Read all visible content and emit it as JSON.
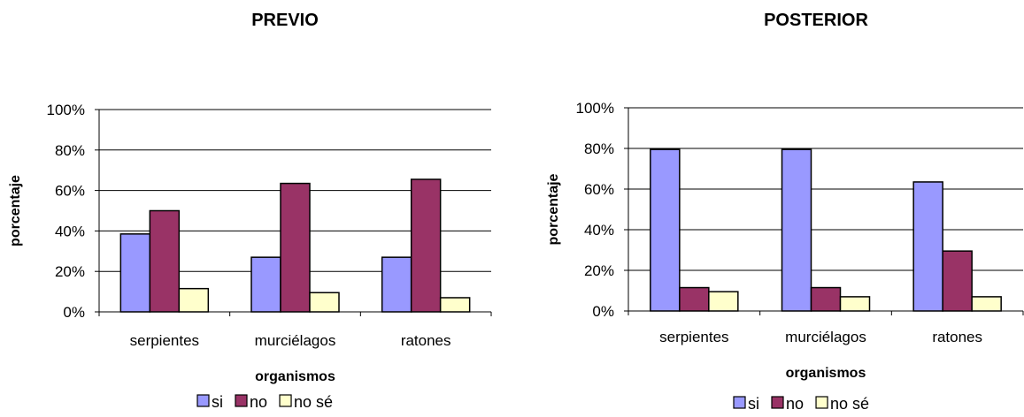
{
  "chart_data": [
    {
      "type": "bar",
      "title": "PREVIO",
      "xlabel": "organismos",
      "ylabel": "porcentaje",
      "ylim": [
        0,
        100
      ],
      "yticks": [
        "0%",
        "20%",
        "40%",
        "60%",
        "80%",
        "100%"
      ],
      "grid": true,
      "legend_position": "bottom",
      "categories": [
        "serpientes",
        "murciélagos",
        "ratones"
      ],
      "series": [
        {
          "name": "si",
          "color": "#9999ff",
          "values": [
            38.5,
            27,
            27
          ]
        },
        {
          "name": "no",
          "color": "#993366",
          "values": [
            50,
            63.5,
            65.5
          ]
        },
        {
          "name": "no sé",
          "color": "#ffffcc",
          "values": [
            11.5,
            9.5,
            7
          ]
        }
      ]
    },
    {
      "type": "bar",
      "title": "POSTERIOR",
      "xlabel": "organismos",
      "ylabel": "porcentaje",
      "ylim": [
        0,
        100
      ],
      "yticks": [
        "0%",
        "20%",
        "40%",
        "60%",
        "80%",
        "100%"
      ],
      "grid": true,
      "legend_position": "bottom",
      "categories": [
        "serpientes",
        "murciélagos",
        "ratones"
      ],
      "series": [
        {
          "name": "si",
          "color": "#9999ff",
          "values": [
            79.5,
            79.5,
            63.5
          ]
        },
        {
          "name": "no",
          "color": "#993366",
          "values": [
            11.5,
            11.5,
            29.5
          ]
        },
        {
          "name": "no sé",
          "color": "#ffffcc",
          "values": [
            9.5,
            7,
            7
          ]
        }
      ]
    }
  ]
}
